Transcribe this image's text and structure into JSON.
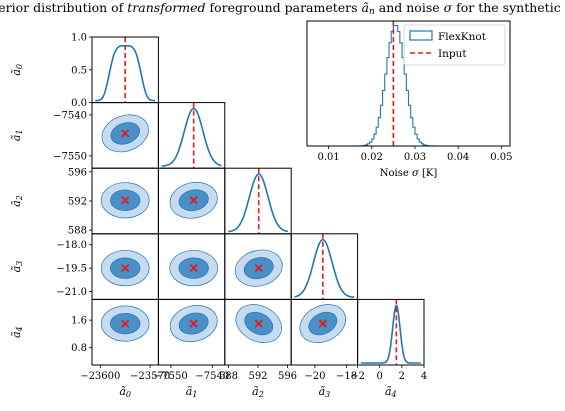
{
  "title": {
    "part1": "Posterior distribution of ",
    "part2": "transformed",
    "part3": " foreground parameters ",
    "part4": "ã",
    "part4sub": "n",
    "part5": " and noise ",
    "part6": "σ",
    "part7": " for the synthetic data"
  },
  "colors": {
    "series": "#1f77b4",
    "fill_outer": "#c6dbef",
    "fill_inner": "#4a90c8",
    "input": "#e41a1c"
  },
  "chart_data": {
    "type": "corner",
    "parameters": [
      {
        "label": "ã",
        "sub": "0",
        "input": -23585,
        "range": [
          -23605,
          -23565
        ],
        "ticks": [
          -23600,
          -23570
        ],
        "tick_labels": [
          "−23600",
          "−23570"
        ]
      },
      {
        "label": "ã",
        "sub": "1",
        "input": -7544.5,
        "range": [
          -7553,
          -7537
        ],
        "ticks": [
          -7550,
          -7540
        ],
        "tick_labels": [
          "−7550",
          "−7540"
        ]
      },
      {
        "label": "ã",
        "sub": "2",
        "input": 592.1,
        "range": [
          587.5,
          596.5
        ],
        "ticks": [
          588,
          592,
          596
        ],
        "tick_labels": [
          "588",
          "592",
          "596"
        ]
      },
      {
        "label": "ã",
        "sub": "3",
        "input": -19.5,
        "range": [
          -21.5,
          -17.3
        ],
        "ticks": [
          -20,
          -18
        ],
        "tick_labels": [
          "−20",
          "−18"
        ]
      },
      {
        "label": "ã",
        "sub": "4",
        "input": 1.5,
        "range": [
          -2,
          4
        ],
        "ticks": [
          -2,
          0,
          2,
          4
        ],
        "tick_labels": [
          "−2",
          "0",
          "2",
          "4"
        ]
      }
    ],
    "y_ticks": [
      {
        "values": [
          0.0,
          0.5,
          1.0
        ],
        "labels": [
          "0.0",
          "0.5",
          "1.0"
        ]
      },
      {
        "values": [
          -7550,
          -7540
        ],
        "labels": [
          "−7550",
          "−7540"
        ]
      },
      {
        "values": [
          588,
          592,
          596
        ],
        "labels": [
          "588",
          "592",
          "596"
        ]
      },
      {
        "values": [
          -21.0,
          -19.5,
          -18.0
        ],
        "labels": [
          "−21.0",
          "−19.5",
          "−18.0"
        ]
      },
      {
        "values": [
          0.8,
          1.6
        ],
        "labels": [
          "0.8",
          "1.6"
        ]
      }
    ],
    "y_ranges": [
      [
        0,
        1
      ],
      [
        -7553,
        -7537
      ],
      [
        587.5,
        596.5
      ],
      [
        -21.5,
        -17.3
      ],
      [
        0.3,
        2.2
      ]
    ],
    "noise_panel": {
      "xlabel": "Noise",
      "xlabel_symbol": "σ",
      "xlabel_unit": "[K]",
      "xlim": [
        0.005,
        0.052
      ],
      "ticks": [
        0.01,
        0.02,
        0.03,
        0.04,
        0.05
      ],
      "tick_labels": [
        "0.01",
        "0.02",
        "0.03",
        "0.04",
        "0.05"
      ],
      "input": 0.025,
      "legend": [
        {
          "name": "FlexKnot",
          "style": "histogram"
        },
        {
          "name": "Input",
          "style": "dashed"
        }
      ]
    }
  }
}
